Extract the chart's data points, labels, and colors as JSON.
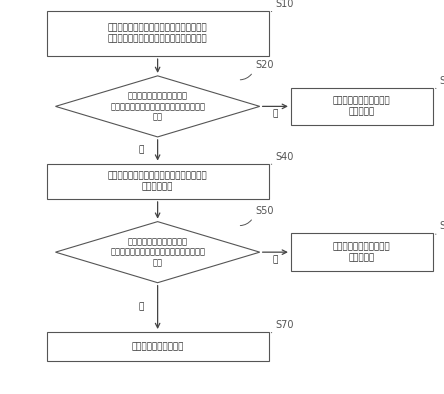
{
  "bg_color": "#ffffff",
  "box_color": "#ffffff",
  "box_edge_color": "#555555",
  "diamond_color": "#ffffff",
  "diamond_edge_color": "#555555",
  "arrow_color": "#444444",
  "text_color": "#222222",
  "label_color": "#555555",
  "s10_text": "在压缩机的启动阶段内，执行对空调器的运\n行状态参数的检测操作，得到第一检测数据",
  "s20_text": "判断所述第一检测数据是否\n满足制冷系统的第一类故障对应的第一判定\n条件",
  "s30_text": "确定所述空调器存在所述\n第一类故障",
  "s40_text": "执行对所述运行状态参数的检测操作，得到\n第二检测数据",
  "s50_text": "判断所述第二检测数据是否\n满足制冷系统的第二类故障对应的第二判定\n条件",
  "s60_text": "确定所述空调器存在所述\n第二类故障",
  "s70_text": "确定所述制冷系统正常",
  "yes_label": "是",
  "no_label": "否"
}
